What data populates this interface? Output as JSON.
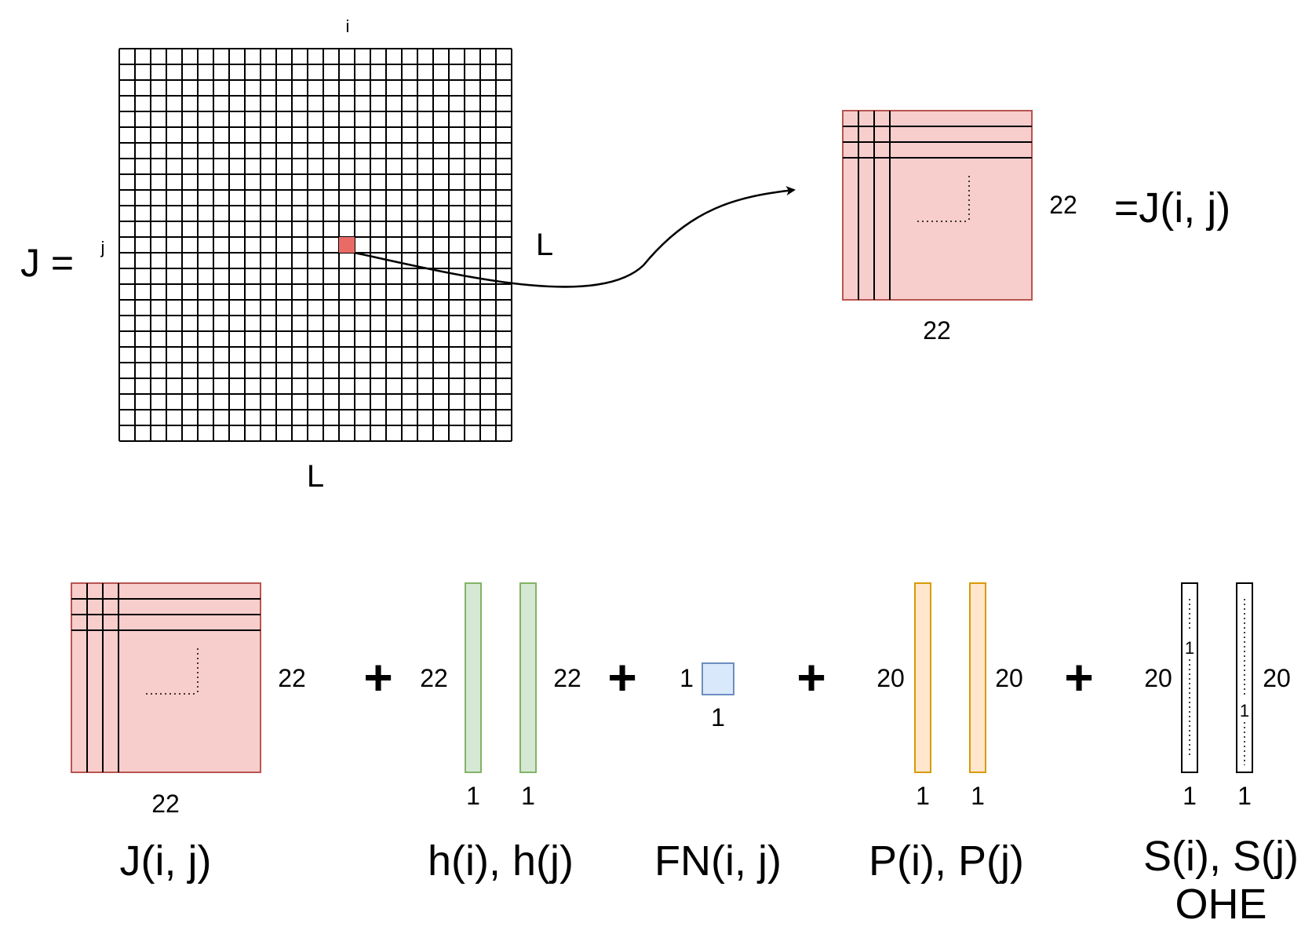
{
  "colors": {
    "pink_fill": "#f8cecc",
    "pink_stroke": "#b85450",
    "red_cell": "#ea6b66",
    "green_fill": "#d5e8d4",
    "green_stroke": "#82b366",
    "blue_fill": "#dae8fc",
    "blue_stroke": "#6c8ebf",
    "orange_fill": "#ffe6cc",
    "orange_stroke": "#d79b00",
    "line": "#000000"
  },
  "top": {
    "j_equals": "J =",
    "index_i": "i",
    "index_j": "j",
    "size_right": "L",
    "size_bottom": "L",
    "grid_cells": 25,
    "block_size_right": "22",
    "block_size_bottom": "22",
    "block_equals": "=J(i, j)"
  },
  "bottom": {
    "terms": [
      {
        "size_right": "22",
        "size_bottom": "22",
        "label": "J(i, j)"
      },
      {
        "size_left": "22",
        "size_right": "22",
        "size_bottom_a": "1",
        "size_bottom_b": "1",
        "label": "h(i), h(j)"
      },
      {
        "size_left": "1",
        "size_bottom": "1",
        "label": "FN(i, j)"
      },
      {
        "size_left": "20",
        "size_right": "20",
        "size_bottom_a": "1",
        "size_bottom_b": "1",
        "label": "P(i), P(j)"
      },
      {
        "size_left": "20",
        "size_right": "20",
        "size_bottom_a": "1",
        "size_bottom_b": "1",
        "one_a": "1",
        "one_b": "1",
        "label": "S(i), S(j)",
        "label2": "OHE"
      }
    ],
    "plus": "+"
  }
}
